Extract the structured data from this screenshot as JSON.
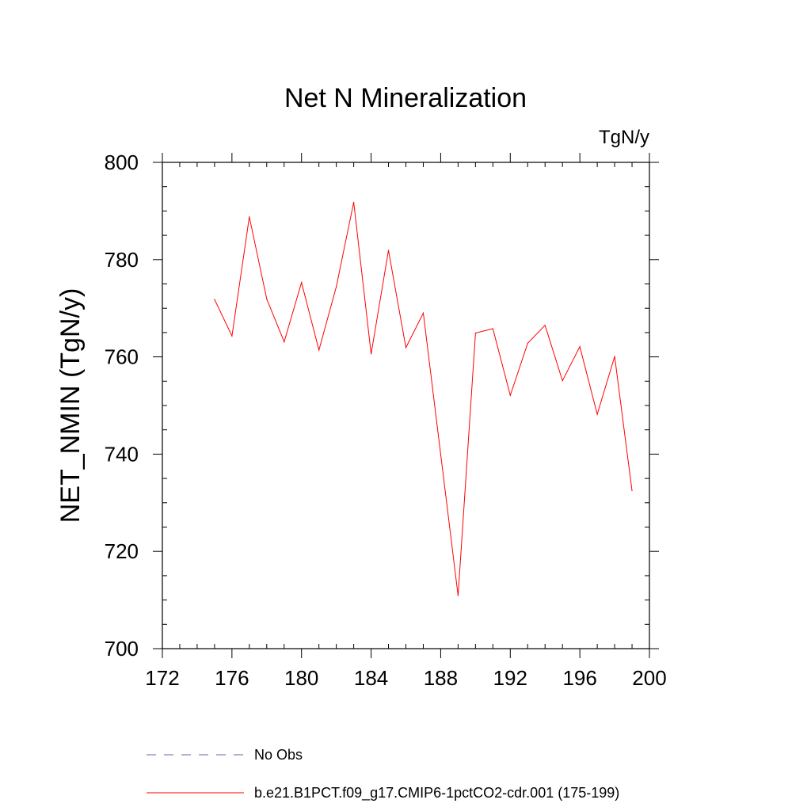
{
  "chart_data": {
    "type": "line",
    "title": "Net N Mineralization",
    "units": "TgN/y",
    "ylabel": "NET_NMIN  (TgN/y)",
    "xlabel": "",
    "xlim": [
      172,
      200
    ],
    "ylim": [
      700,
      800
    ],
    "xticks": [
      172,
      176,
      180,
      184,
      188,
      192,
      196,
      200
    ],
    "yticks": [
      700,
      720,
      740,
      760,
      780,
      800
    ],
    "series": [
      {
        "name": "b.e21.B1PCT.f09_g17.CMIP6-1pctCO2-cdr.001 (175-199)",
        "color": "#ff0000",
        "style": "solid",
        "x": [
          175,
          176,
          177,
          178,
          179,
          180,
          181,
          182,
          183,
          184,
          185,
          186,
          187,
          188,
          189,
          190,
          191,
          192,
          193,
          194,
          195,
          196,
          197,
          198,
          199
        ],
        "values": [
          771.8,
          764.3,
          788.8,
          771.9,
          763.1,
          775.3,
          761.4,
          774.4,
          791.8,
          760.6,
          781.9,
          761.9,
          769.0,
          740.0,
          710.9,
          764.9,
          765.8,
          752.1,
          762.8,
          766.5,
          755.1,
          762.1,
          748.2,
          760.1,
          732.5
        ]
      }
    ],
    "legend": [
      {
        "label": "No Obs",
        "color": "#6b5fb0",
        "style": "dashed"
      },
      {
        "label": "b.e21.B1PCT.f09_g17.CMIP6-1pctCO2-cdr.001 (175-199)",
        "color": "#ff0000",
        "style": "solid"
      }
    ],
    "grid": false,
    "legend_position": "bottom"
  }
}
